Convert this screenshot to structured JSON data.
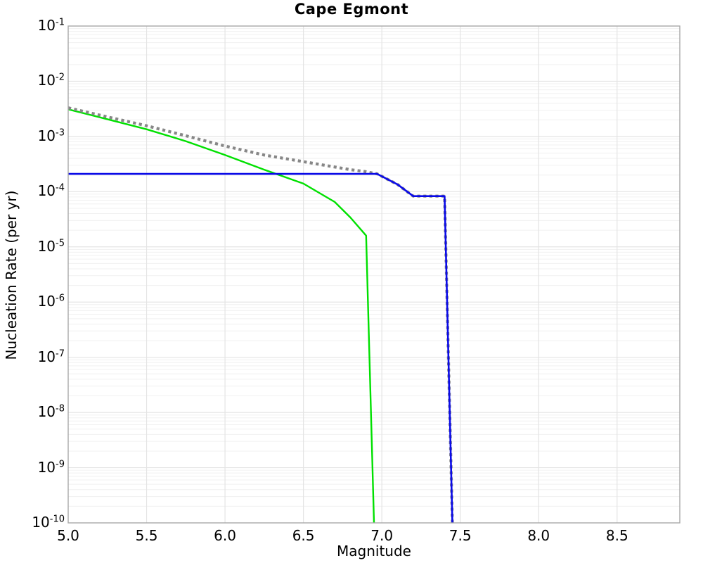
{
  "chart_data": {
    "type": "line",
    "title": "Cape Egmont",
    "xlabel": "Magnitude",
    "ylabel": "Nucleation Rate (per yr)",
    "xlim": [
      5.0,
      8.9
    ],
    "y_exp_range": [
      -10,
      -1
    ],
    "yscale": "log",
    "grid": "major and log-minor gridlines, light gray",
    "legend": "none",
    "frame_color": "#a8a8a8",
    "major_grid_color": "#e4e4e4",
    "minor_grid_color": "#f0f0f0",
    "x_ticks": [
      "5.0",
      "5.5",
      "6.0",
      "6.5",
      "7.0",
      "7.5",
      "8.0",
      "8.5"
    ],
    "y_tick_exponents": [
      -1,
      -2,
      -3,
      -4,
      -5,
      -6,
      -7,
      -8,
      -9,
      -10
    ],
    "series": [
      {
        "name": "fault-rate-green",
        "color": "#00e000",
        "style": "solid",
        "width": 2.4,
        "points": [
          [
            5.0,
            0.0031
          ],
          [
            5.25,
            0.00205
          ],
          [
            5.5,
            0.00135
          ],
          [
            5.75,
            0.00082
          ],
          [
            6.0,
            0.00046
          ],
          [
            6.25,
            0.00025
          ],
          [
            6.5,
            0.00014
          ],
          [
            6.7,
            6.5e-05
          ],
          [
            6.8,
            3.4e-05
          ],
          [
            6.9,
            1.6e-05
          ],
          [
            6.95,
            1e-10
          ]
        ]
      },
      {
        "name": "total-rate-dotted-gray",
        "color": "#878787",
        "style": "dotted",
        "width": 4.2,
        "points": [
          [
            5.0,
            0.0033
          ],
          [
            5.25,
            0.00226
          ],
          [
            5.5,
            0.00156
          ],
          [
            5.75,
            0.00103
          ],
          [
            6.0,
            0.00067
          ],
          [
            6.25,
            0.00046
          ],
          [
            6.5,
            0.00035
          ],
          [
            6.7,
            0.00028
          ],
          [
            6.8,
            0.00025
          ],
          [
            6.9,
            0.00023
          ],
          [
            6.97,
            0.00021
          ],
          [
            7.1,
            0.000135
          ],
          [
            7.2,
            8.3e-05
          ],
          [
            7.4,
            8.3e-05
          ],
          [
            7.45,
            1e-10
          ]
        ]
      },
      {
        "name": "background-rate-blue",
        "color": "#0a0ae8",
        "style": "solid",
        "width": 2.6,
        "points": [
          [
            5.0,
            0.00021
          ],
          [
            6.97,
            0.00021
          ],
          [
            7.1,
            0.000135
          ],
          [
            7.2,
            8.3e-05
          ],
          [
            7.4,
            8.3e-05
          ],
          [
            7.45,
            1e-10
          ]
        ]
      }
    ]
  }
}
